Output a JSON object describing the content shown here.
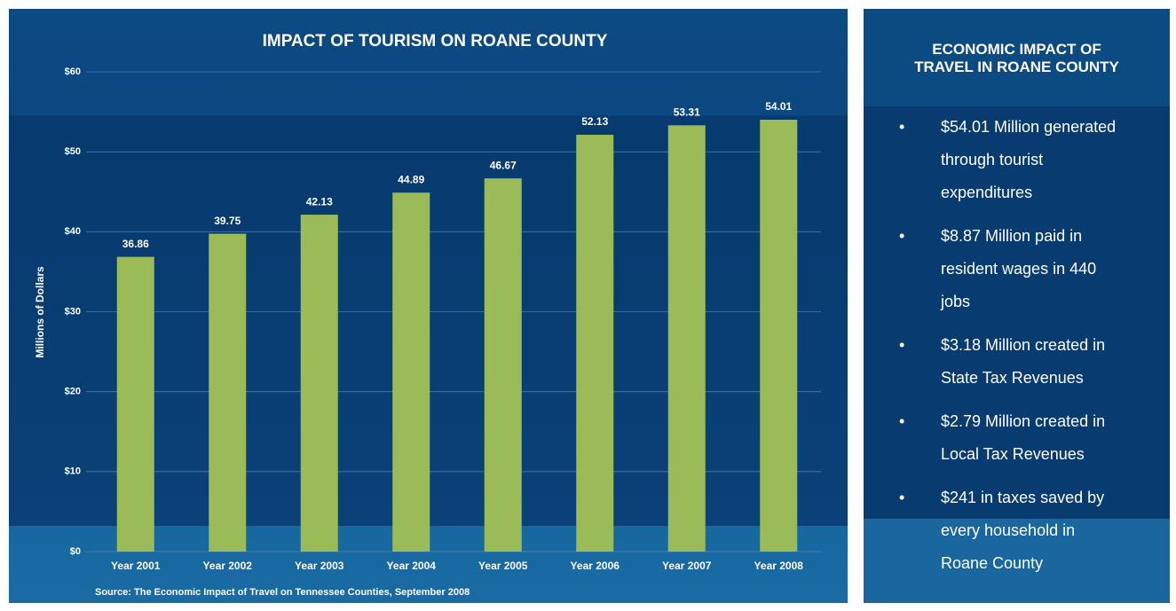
{
  "chart_data": {
    "type": "bar",
    "title": "IMPACT OF TOURISM ON ROANE COUNTY",
    "y_label": "Millions of Dollars",
    "source": "Source: The Economic Impact of Travel on Tennessee Counties, September 2008",
    "categories": [
      "Year 2001",
      "Year 2002",
      "Year 2003",
      "Year 2004",
      "Year 2005",
      "Year 2006",
      "Year 2007",
      "Year 2008"
    ],
    "values": [
      36.86,
      39.75,
      42.13,
      44.89,
      46.67,
      52.13,
      53.31,
      54.01
    ],
    "color": "#9bbb59",
    "ylim": [
      0,
      60
    ],
    "yticks": [
      {
        "value": 0,
        "label": "$0"
      },
      {
        "value": 10,
        "label": "$10"
      },
      {
        "value": 20,
        "label": "$20"
      },
      {
        "value": 30,
        "label": "$30"
      },
      {
        "value": 40,
        "label": "$40"
      },
      {
        "value": 50,
        "label": "$50"
      },
      {
        "value": 60,
        "label": "$60"
      }
    ],
    "grid": true
  },
  "side_panel": {
    "title": [
      "ECONOMIC IMPACT OF",
      "TRAVEL IN ROANE COUNTY"
    ],
    "items": [
      [
        "$54.01 Million generated",
        "through tourist",
        "expenditures"
      ],
      [
        "$8.87 Million paid in",
        "resident wages in 440",
        "jobs"
      ],
      [
        "$3.18 Million created in",
        "State Tax Revenues"
      ],
      [
        "$2.79 Million created in",
        "Local Tax Revenues"
      ],
      [
        "$241 in taxes saved by",
        "every household in",
        "Roane County"
      ]
    ]
  }
}
